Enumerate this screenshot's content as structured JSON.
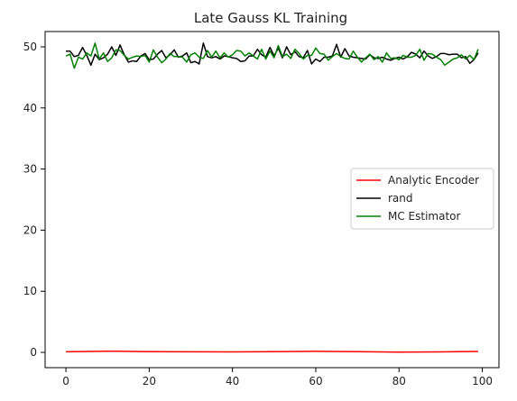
{
  "chart_data": {
    "type": "line",
    "title": "Late Gauss KL Training",
    "xlabel": "",
    "ylabel": "",
    "xlim": [
      -5,
      104
    ],
    "ylim": [
      -2.5,
      52.5
    ],
    "xticks": [
      0,
      20,
      40,
      60,
      80,
      100
    ],
    "yticks": [
      0,
      10,
      20,
      30,
      40,
      50
    ],
    "grid": false,
    "legend_position": "center-right",
    "series": [
      {
        "name": "Analytic Encoder",
        "color": "#ff0000",
        "x": [
          0,
          10,
          20,
          30,
          40,
          50,
          60,
          70,
          80,
          90,
          99
        ],
        "y": [
          0.1,
          0.2,
          0.12,
          0.1,
          0.08,
          0.12,
          0.18,
          0.12,
          0.05,
          0.08,
          0.15
        ]
      },
      {
        "name": "rand",
        "color": "#000000",
        "x": [
          0,
          1,
          2,
          3,
          4,
          5,
          6,
          7,
          8,
          9,
          10,
          11,
          12,
          13,
          14,
          15,
          16,
          17,
          18,
          19,
          20,
          21,
          22,
          23,
          24,
          25,
          26,
          27,
          28,
          29,
          30,
          31,
          32,
          33,
          34,
          35,
          36,
          37,
          38,
          39,
          40,
          41,
          42,
          43,
          44,
          45,
          46,
          47,
          48,
          49,
          50,
          51,
          52,
          53,
          54,
          55,
          56,
          57,
          58,
          59,
          60,
          61,
          62,
          63,
          64,
          65,
          66,
          67,
          68,
          69,
          70,
          71,
          72,
          73,
          74,
          75,
          76,
          77,
          78,
          79,
          80,
          81,
          82,
          83,
          84,
          85,
          86,
          87,
          88,
          89,
          90,
          91,
          92,
          93,
          94,
          95,
          96,
          97,
          98,
          99
        ],
        "y": [
          49.3,
          49.3,
          48.4,
          48.6,
          49.9,
          48.6,
          47.0,
          48.8,
          47.9,
          48.2,
          48.8,
          50.0,
          48.6,
          50.3,
          48.7,
          47.5,
          47.7,
          47.6,
          48.5,
          48.9,
          47.9,
          48.0,
          48.8,
          49.4,
          48.2,
          48.7,
          49.5,
          48.3,
          48.5,
          49.0,
          47.4,
          47.6,
          47.2,
          50.6,
          48.4,
          48.2,
          48.4,
          48.0,
          48.5,
          48.4,
          48.2,
          48.1,
          47.6,
          47.7,
          48.5,
          48.5,
          49.6,
          48.7,
          48.3,
          49.9,
          48.5,
          49.8,
          48.2,
          50.0,
          48.7,
          49.2,
          48.4,
          48.2,
          49.4,
          47.2,
          48.0,
          47.6,
          48.3,
          48.3,
          48.5,
          50.4,
          48.3,
          49.7,
          48.5,
          48.3,
          48.2,
          48.1,
          48.0,
          48.7,
          48.2,
          48.1,
          48.3,
          48.0,
          47.8,
          48.1,
          48.3,
          48.0,
          48.4,
          49.1,
          48.8,
          48.2,
          49.3,
          48.5,
          48.1,
          48.4,
          48.9,
          48.9,
          48.7,
          48.8,
          48.8,
          48.2,
          48.4,
          47.3,
          47.9,
          49.0
        ]
      },
      {
        "name": "MC Estimator",
        "color": "#008000",
        "x": [
          0,
          1,
          2,
          3,
          4,
          5,
          6,
          7,
          8,
          9,
          10,
          11,
          12,
          13,
          14,
          15,
          16,
          17,
          18,
          19,
          20,
          21,
          22,
          23,
          24,
          25,
          26,
          27,
          28,
          29,
          30,
          31,
          32,
          33,
          34,
          35,
          36,
          37,
          38,
          39,
          40,
          41,
          42,
          43,
          44,
          45,
          46,
          47,
          48,
          49,
          50,
          51,
          52,
          53,
          54,
          55,
          56,
          57,
          58,
          59,
          60,
          61,
          62,
          63,
          64,
          65,
          66,
          67,
          68,
          69,
          70,
          71,
          72,
          73,
          74,
          75,
          76,
          77,
          78,
          79,
          80,
          81,
          82,
          83,
          84,
          85,
          86,
          87,
          88,
          89,
          90,
          91,
          92,
          93,
          94,
          95,
          96,
          97,
          98,
          99
        ],
        "y": [
          48.5,
          48.8,
          46.5,
          48.3,
          48.0,
          49.0,
          48.5,
          50.6,
          48.0,
          49.0,
          47.6,
          48.2,
          49.5,
          49.4,
          48.6,
          48.0,
          48.3,
          48.5,
          48.4,
          48.6,
          47.5,
          49.5,
          48.3,
          47.4,
          48.0,
          48.9,
          48.4,
          48.4,
          48.3,
          47.5,
          48.7,
          49.0,
          48.3,
          48.1,
          49.4,
          48.3,
          49.3,
          48.2,
          49.0,
          48.3,
          48.7,
          49.4,
          49.3,
          48.5,
          49.0,
          48.5,
          48.0,
          49.6,
          48.0,
          49.3,
          48.2,
          50.2,
          48.4,
          48.8,
          48.1,
          49.6,
          48.9,
          48.0,
          48.6,
          48.6,
          49.8,
          48.9,
          48.8,
          47.8,
          48.4,
          48.9,
          48.4,
          48.1,
          48.0,
          49.3,
          48.3,
          47.5,
          48.2,
          48.8,
          47.9,
          48.4,
          47.5,
          49.0,
          48.1,
          48.2,
          47.9,
          48.6,
          48.3,
          48.3,
          48.6,
          49.6,
          47.8,
          48.9,
          48.8,
          48.3,
          47.9,
          47.0,
          47.5,
          48.0,
          48.2,
          48.7,
          48.0,
          48.6,
          47.9,
          49.6
        ]
      }
    ]
  }
}
